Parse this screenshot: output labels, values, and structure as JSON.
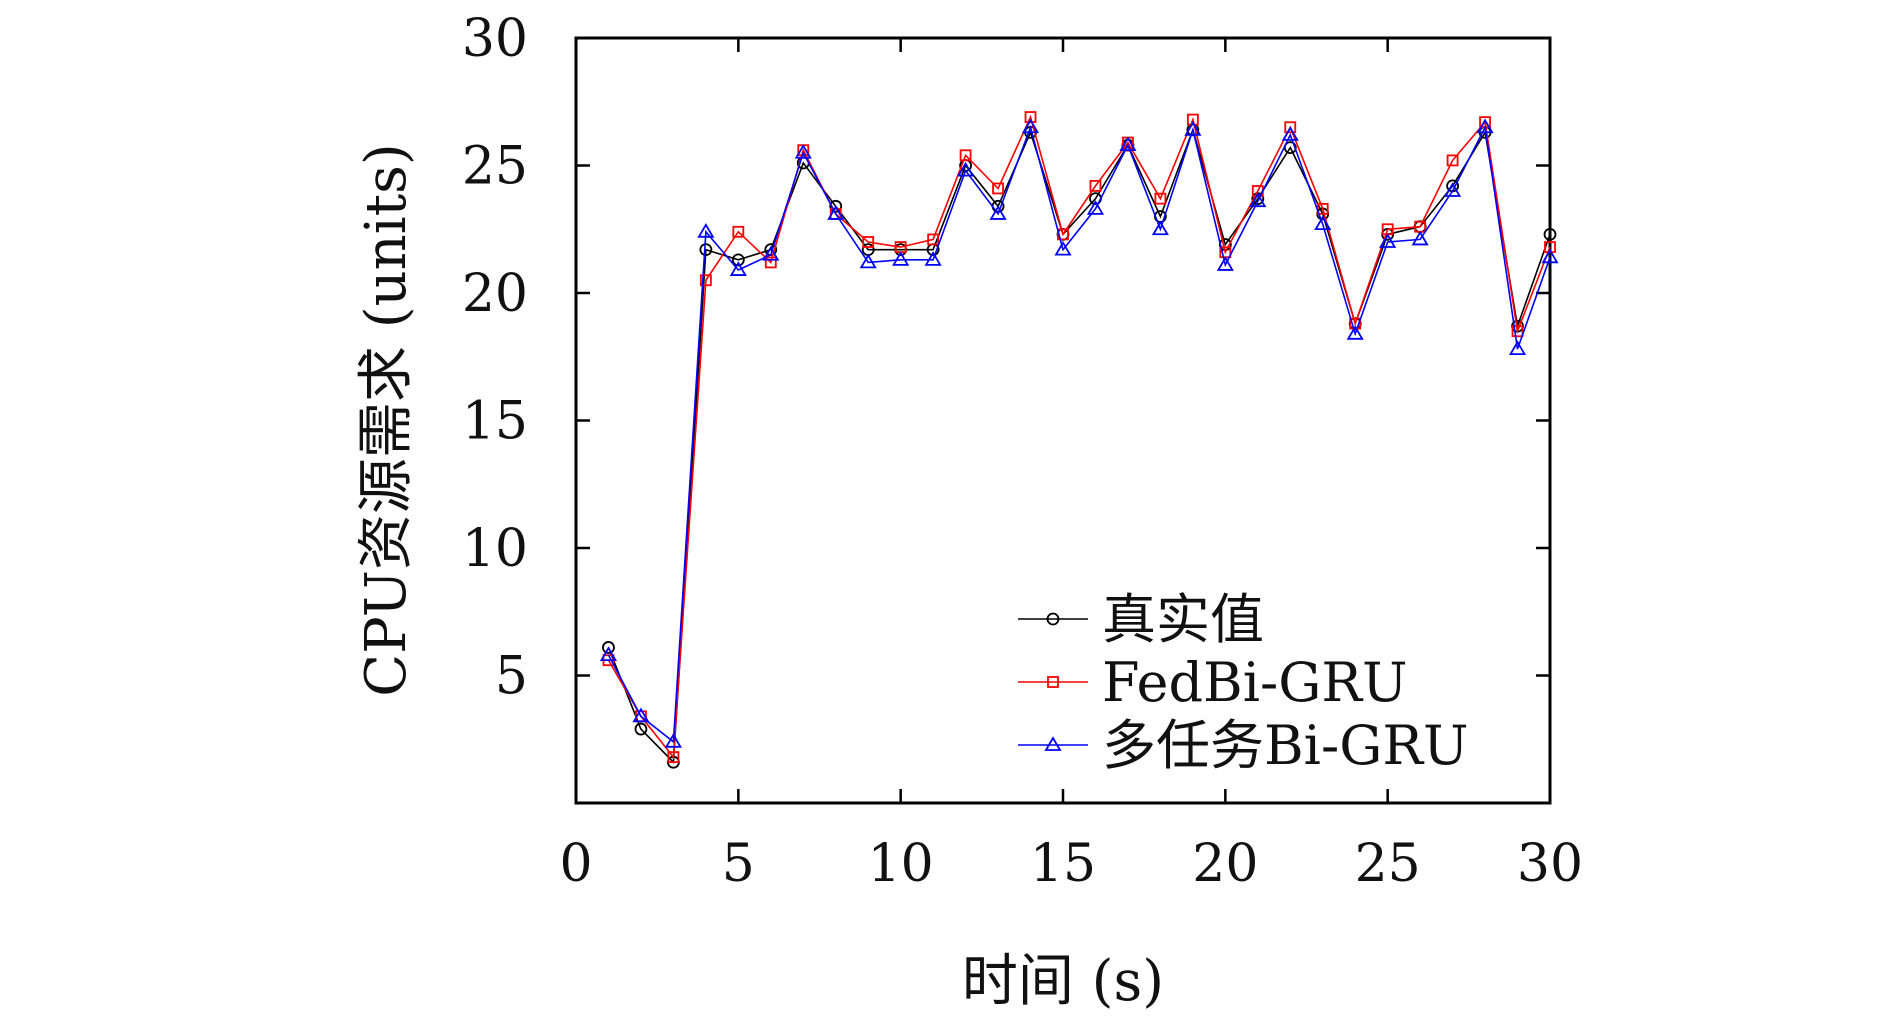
{
  "chart_data": {
    "type": "line",
    "xlabel": "时间 (s)",
    "ylabel": "CPU资源需求 (units)",
    "xlim": [
      0,
      30
    ],
    "ylim": [
      0,
      30
    ],
    "x_ticks": [
      0,
      5,
      10,
      15,
      20,
      25,
      30
    ],
    "y_ticks": [
      5,
      10,
      15,
      20,
      25,
      30
    ],
    "grid": false,
    "legend_position": "bottom-right",
    "x": [
      1,
      2,
      3,
      4,
      5,
      6,
      7,
      8,
      9,
      10,
      11,
      12,
      13,
      14,
      15,
      16,
      17,
      18,
      19,
      20,
      21,
      22,
      23,
      24,
      25,
      26,
      27,
      28,
      29,
      30
    ],
    "series": [
      {
        "name": "真实值",
        "color": "#000000",
        "marker": "circle",
        "values": [
          6.1,
          2.9,
          1.6,
          21.7,
          21.3,
          21.7,
          25.1,
          23.4,
          21.7,
          21.7,
          21.7,
          25.0,
          23.4,
          26.3,
          22.3,
          23.7,
          25.8,
          23.0,
          26.4,
          21.9,
          23.7,
          25.7,
          23.1,
          18.8,
          22.3,
          22.6,
          24.2,
          26.3,
          18.7,
          22.3
        ]
      },
      {
        "name": "FedBi-GRU",
        "color": "#ff0000",
        "marker": "square",
        "values": [
          5.6,
          3.4,
          1.8,
          20.5,
          22.4,
          21.2,
          25.6,
          23.1,
          22.0,
          21.8,
          22.1,
          25.4,
          24.1,
          26.9,
          22.3,
          24.2,
          25.9,
          23.7,
          26.8,
          21.6,
          24.0,
          26.5,
          23.3,
          18.8,
          22.5,
          22.6,
          25.2,
          26.7,
          18.5,
          21.8
        ]
      },
      {
        "name": "多任务Bi-GRU",
        "color": "#0000ff",
        "marker": "triangle",
        "values": [
          5.8,
          3.4,
          2.4,
          22.4,
          20.9,
          21.5,
          25.5,
          23.1,
          21.2,
          21.3,
          21.3,
          24.8,
          23.1,
          26.5,
          21.7,
          23.3,
          25.8,
          22.5,
          26.4,
          21.1,
          23.6,
          26.2,
          22.7,
          18.4,
          22.0,
          22.1,
          24.0,
          26.5,
          17.8,
          21.4
        ]
      }
    ]
  }
}
